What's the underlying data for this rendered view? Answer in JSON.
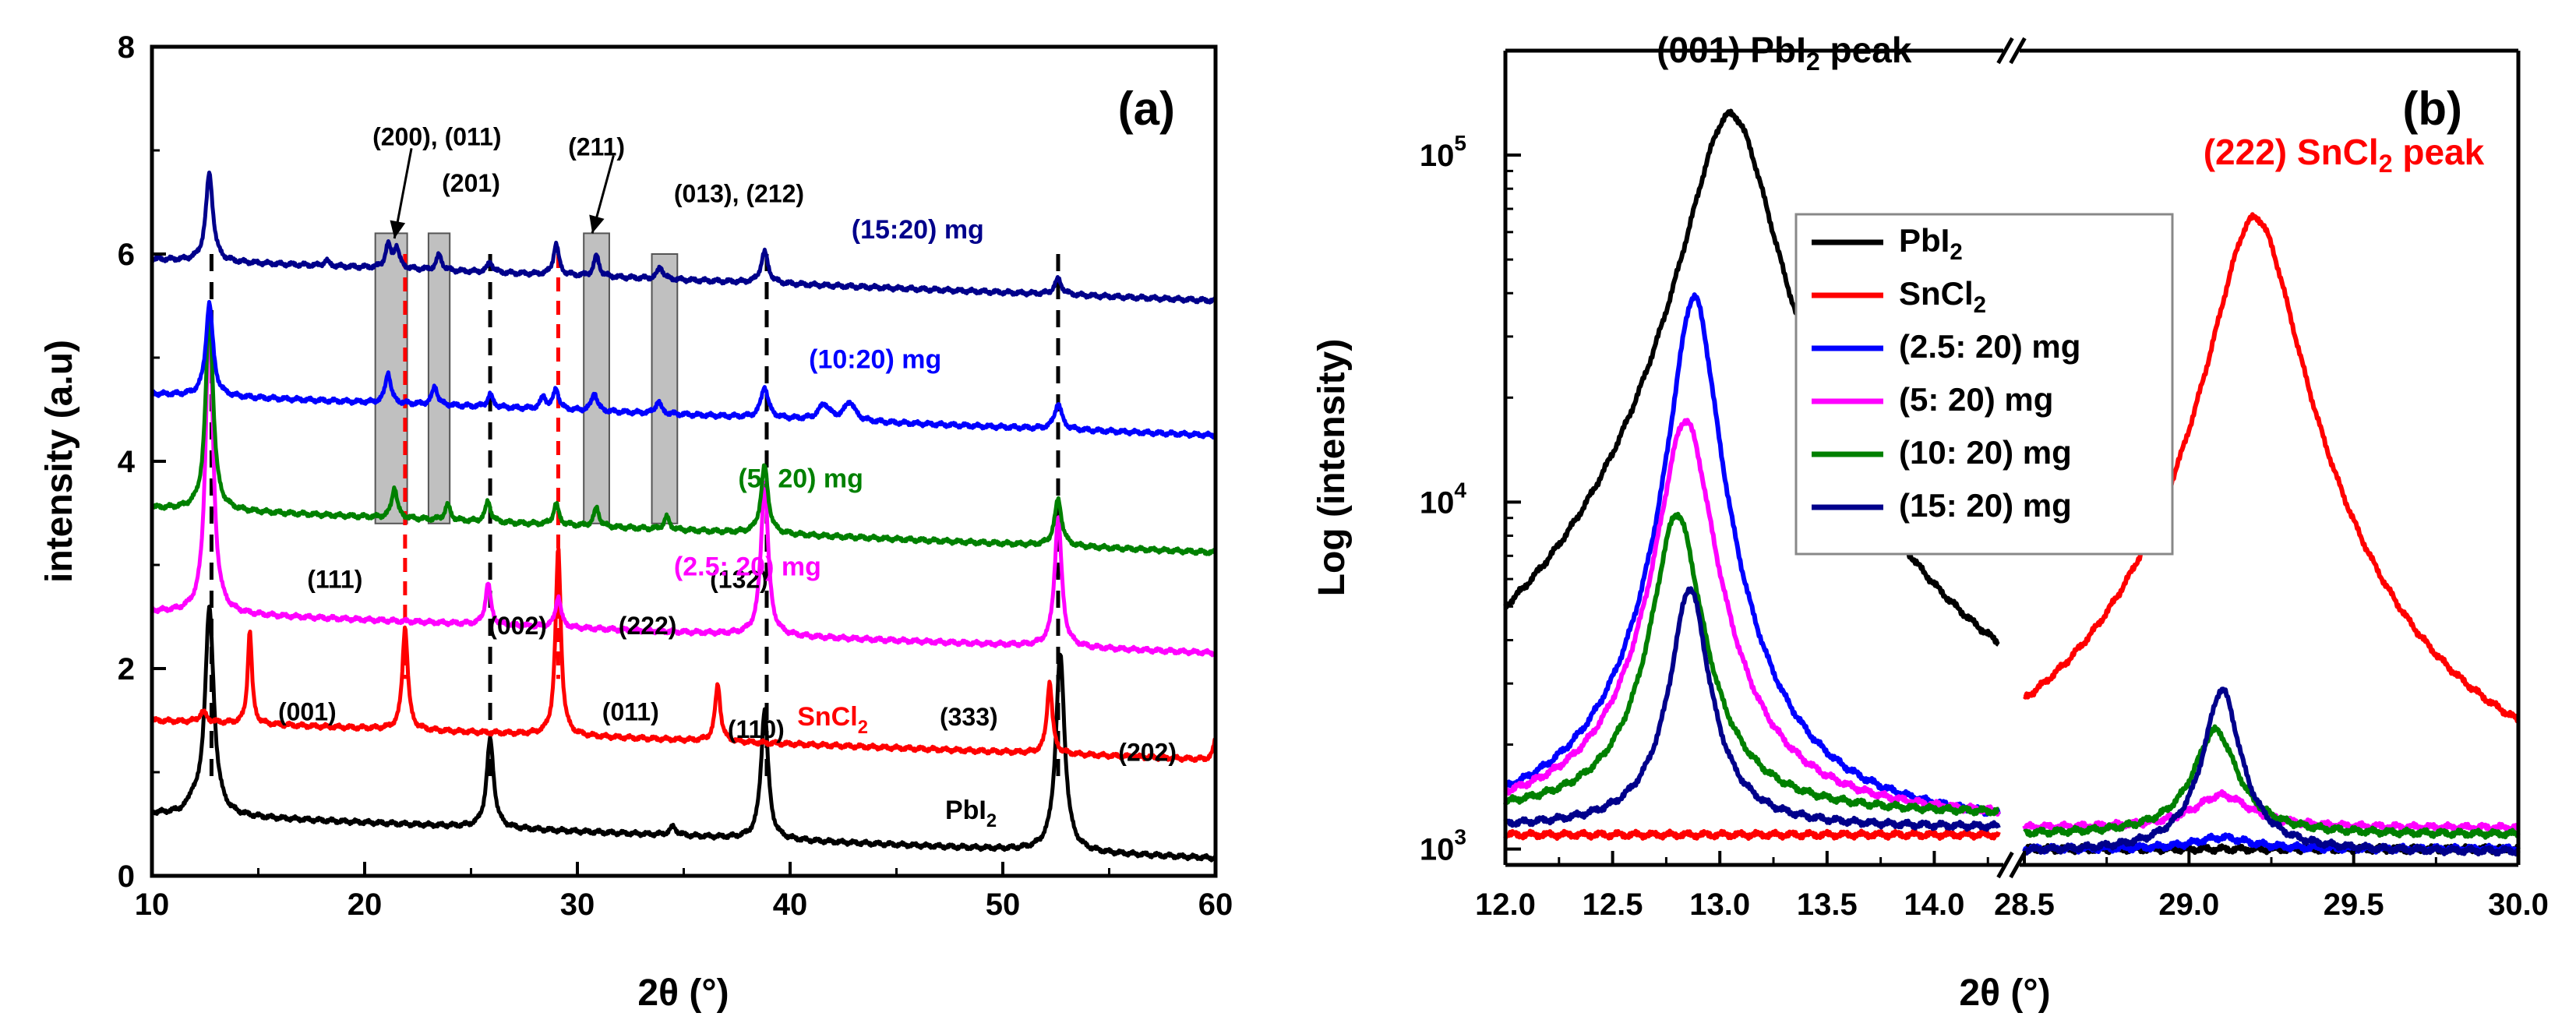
{
  "chart_data": [
    {
      "type": "line",
      "panel": "(a)",
      "xlabel": "2θ (°)",
      "ylabel": "intensity (a.u)",
      "xlim": [
        10,
        60
      ],
      "ylim": [
        0,
        8
      ],
      "x_ticks": [
        10,
        20,
        30,
        40,
        50,
        60
      ],
      "x_tick_labels": [
        "10",
        "20",
        "30",
        "40",
        "50",
        "60"
      ],
      "y_ticks": [
        0,
        2,
        4,
        6,
        8
      ],
      "y_tick_labels": [
        "0",
        "2",
        "4",
        "6",
        "8"
      ],
      "series": [
        {
          "id": "pbi2",
          "name": "PbI",
          "sub": "2",
          "color": "#000000",
          "baseline": [
            0.6,
            0.17
          ],
          "peaks": [
            [
              12.7,
              2.0,
              0.25
            ],
            [
              25.9,
              0.85,
              0.2
            ],
            [
              38.8,
              1.25,
              0.2
            ],
            [
              52.7,
              1.9,
              0.25
            ],
            [
              11.9,
              0.1,
              0.2
            ],
            [
              34.5,
              0.08,
              0.2
            ]
          ],
          "label_pos": [
            48.5,
            0.55
          ]
        },
        {
          "id": "sncl2",
          "name": "SnCl",
          "sub": "2",
          "color": "#ff0000",
          "baseline": [
            1.5,
            1.12
          ],
          "peaks": [
            [
              14.6,
              0.9,
              0.12
            ],
            [
              21.9,
              1.0,
              0.15
            ],
            [
              29.1,
              1.8,
              0.15
            ],
            [
              36.6,
              0.55,
              0.15
            ],
            [
              52.2,
              0.7,
              0.15
            ],
            [
              60.0,
              0.2,
              0.12
            ],
            [
              12.4,
              0.1,
              0.2
            ]
          ],
          "label_pos": [
            42.0,
            1.45
          ]
        },
        {
          "id": "s25",
          "name": "(2.5: 20) mg",
          "color": "#ff00ff",
          "baseline": [
            2.55,
            2.15
          ],
          "peaks": [
            [
              12.7,
              3.0,
              0.2
            ],
            [
              25.8,
              0.4,
              0.15
            ],
            [
              29.1,
              0.3,
              0.15
            ],
            [
              38.8,
              1.5,
              0.2
            ],
            [
              52.6,
              1.25,
              0.2
            ]
          ],
          "label_pos": [
            38.0,
            2.9
          ]
        },
        {
          "id": "s5",
          "name": "(5: 20) mg",
          "color": "#008000",
          "baseline": [
            3.55,
            3.12
          ],
          "peaks": [
            [
              12.7,
              2.0,
              0.2
            ],
            [
              21.4,
              0.3,
              0.15
            ],
            [
              23.9,
              0.15,
              0.15
            ],
            [
              25.8,
              0.2,
              0.15
            ],
            [
              29.0,
              0.2,
              0.15
            ],
            [
              30.9,
              0.18,
              0.15
            ],
            [
              34.2,
              0.12,
              0.15
            ],
            [
              38.8,
              0.65,
              0.2
            ],
            [
              52.6,
              0.45,
              0.2
            ]
          ],
          "label_pos": [
            40.5,
            3.75
          ]
        },
        {
          "id": "s10",
          "name": "(10:20) mg",
          "color": "#0000ff",
          "baseline": [
            4.65,
            4.25
          ],
          "peaks": [
            [
              12.7,
              0.9,
              0.2
            ],
            [
              21.1,
              0.3,
              0.15
            ],
            [
              23.3,
              0.18,
              0.15
            ],
            [
              25.9,
              0.12,
              0.15
            ],
            [
              28.4,
              0.12,
              0.15
            ],
            [
              29.0,
              0.2,
              0.15
            ],
            [
              30.8,
              0.18,
              0.15
            ],
            [
              33.8,
              0.12,
              0.15
            ],
            [
              38.8,
              0.3,
              0.2
            ],
            [
              41.6,
              0.15,
              0.3
            ],
            [
              42.8,
              0.18,
              0.3
            ],
            [
              52.6,
              0.25,
              0.2
            ]
          ],
          "label_pos": [
            44.0,
            4.9
          ]
        },
        {
          "id": "s15",
          "name": "(15:20) mg",
          "color": "#00008b",
          "baseline": [
            5.95,
            5.55
          ],
          "peaks": [
            [
              12.7,
              0.85,
              0.2
            ],
            [
              21.1,
              0.22,
              0.15
            ],
            [
              21.5,
              0.2,
              0.15
            ],
            [
              23.5,
              0.15,
              0.15
            ],
            [
              25.9,
              0.1,
              0.15
            ],
            [
              29.0,
              0.3,
              0.15
            ],
            [
              30.9,
              0.2,
              0.15
            ],
            [
              33.9,
              0.12,
              0.15
            ],
            [
              38.8,
              0.3,
              0.2
            ],
            [
              52.6,
              0.15,
              0.2
            ],
            [
              18.2,
              0.05,
              0.15
            ]
          ],
          "label_pos": [
            46.0,
            6.15
          ]
        }
      ],
      "dashed_lines_black": [
        12.8,
        25.9,
        38.9,
        52.6
      ],
      "dashed_lines_red": [
        21.9,
        29.1
      ],
      "shaded_bands": [
        [
          20.5,
          22.0,
          3.4,
          6.2
        ],
        [
          23.0,
          24.0,
          3.4,
          6.2
        ],
        [
          30.3,
          31.5,
          3.4,
          6.2
        ],
        [
          33.5,
          34.7,
          3.4,
          6.0
        ]
      ],
      "annotations": [
        {
          "text": "(200), (011)",
          "x": 23.4,
          "y": 7.05
        },
        {
          "text": "(201)",
          "x": 25.0,
          "y": 6.6
        },
        {
          "text": "(211)",
          "x": 30.9,
          "y": 6.95
        },
        {
          "text": "(013), (212)",
          "x": 37.6,
          "y": 6.5
        },
        {
          "text": "(001)",
          "x": 17.3,
          "y": 1.5
        },
        {
          "text": "(111)",
          "x": 18.6,
          "y": 2.78
        },
        {
          "text": "(002)",
          "x": 27.2,
          "y": 2.33
        },
        {
          "text": "(222)",
          "x": 33.3,
          "y": 2.33
        },
        {
          "text": "(132)",
          "x": 37.6,
          "y": 2.78
        },
        {
          "text": "(011)",
          "x": 32.5,
          "y": 1.5
        },
        {
          "text": "(110)",
          "x": 38.4,
          "y": 1.33
        },
        {
          "text": "(333)",
          "x": 48.4,
          "y": 1.45
        },
        {
          "text": "(202)",
          "x": 56.8,
          "y": 1.11
        }
      ],
      "arrows": [
        [
          22.2,
          7.02,
          21.4,
          6.15
        ],
        [
          31.7,
          6.95,
          30.7,
          6.2
        ]
      ]
    },
    {
      "type": "line",
      "panel": "(b)",
      "xlabel": "2θ (°)",
      "ylabel": "Log (intensity)",
      "y_scale": "log",
      "ylim": [
        900,
        200000
      ],
      "y_ticks": [
        1000,
        10000,
        100000
      ],
      "y_tick_labels": [
        "10",
        "10",
        "10"
      ],
      "y_tick_exponents": [
        "3",
        "4",
        "5"
      ],
      "x_segments": [
        [
          12.0,
          14.3
        ],
        [
          28.5,
          30.0
        ]
      ],
      "x_ticks": [
        12.0,
        12.5,
        13.0,
        13.5,
        14.0,
        28.5,
        29.0,
        29.5,
        30.0
      ],
      "x_tick_labels": [
        "12.0",
        "12.5",
        "13.0",
        "13.5",
        "14.0",
        "28.5",
        "29.0",
        "29.5",
        "30.0"
      ],
      "series": [
        {
          "id": "pbi2",
          "name": "PbI",
          "sub": "2",
          "color": "#000000",
          "left": {
            "base": 1300,
            "peaks": [
              [
                13.05,
                130000,
                0.18
              ]
            ]
          },
          "right": {
            "base": 1000,
            "peaks": []
          }
        },
        {
          "id": "sncl2",
          "name": "SnCl",
          "sub": "2",
          "color": "#ff0000",
          "left": {
            "base": 1100,
            "peaks": []
          },
          "right": {
            "base": 1150,
            "peaks": [
              [
                29.2,
                65000,
                0.11
              ]
            ]
          }
        },
        {
          "id": "s25",
          "name": "(2.5: 20) mg",
          "color": "#0000ff",
          "left": {
            "base": 1120,
            "peaks": [
              [
                12.88,
                38000,
                0.09
              ]
            ]
          },
          "right": {
            "base": 1000,
            "peaks": [
              [
                29.1,
                80,
                0.1
              ]
            ]
          }
        },
        {
          "id": "s5",
          "name": "(5: 20) mg",
          "color": "#ff00ff",
          "left": {
            "base": 1200,
            "peaks": [
              [
                12.84,
                16000,
                0.11
              ]
            ]
          },
          "right": {
            "base": 1150,
            "peaks": [
              [
                29.1,
                280,
                0.1
              ]
            ]
          }
        },
        {
          "id": "s10",
          "name": "(10: 20) mg",
          "color": "#008000",
          "left": {
            "base": 1250,
            "peaks": [
              [
                12.8,
                8000,
                0.1
              ]
            ]
          },
          "right": {
            "base": 1100,
            "peaks": [
              [
                29.08,
                1100,
                0.07
              ]
            ]
          }
        },
        {
          "id": "s15",
          "name": "(15: 20) mg",
          "color": "#00008b",
          "left": {
            "base": 1150,
            "peaks": [
              [
                12.86,
                4500,
                0.08
              ]
            ]
          },
          "right": {
            "base": 980,
            "peaks": [
              [
                29.1,
                1900,
                0.055
              ]
            ]
          }
        }
      ],
      "annotations": [
        {
          "text": "(001) PbI",
          "sub": "2",
          "tail": " peak",
          "x": 13.3,
          "y": 185000,
          "color": "#000000"
        },
        {
          "text": "(222) SnCl",
          "sub": "2",
          "tail": " peak",
          "x": 29.47,
          "y": 94000,
          "color": "#ff0000"
        }
      ],
      "legend_position": "center"
    }
  ]
}
